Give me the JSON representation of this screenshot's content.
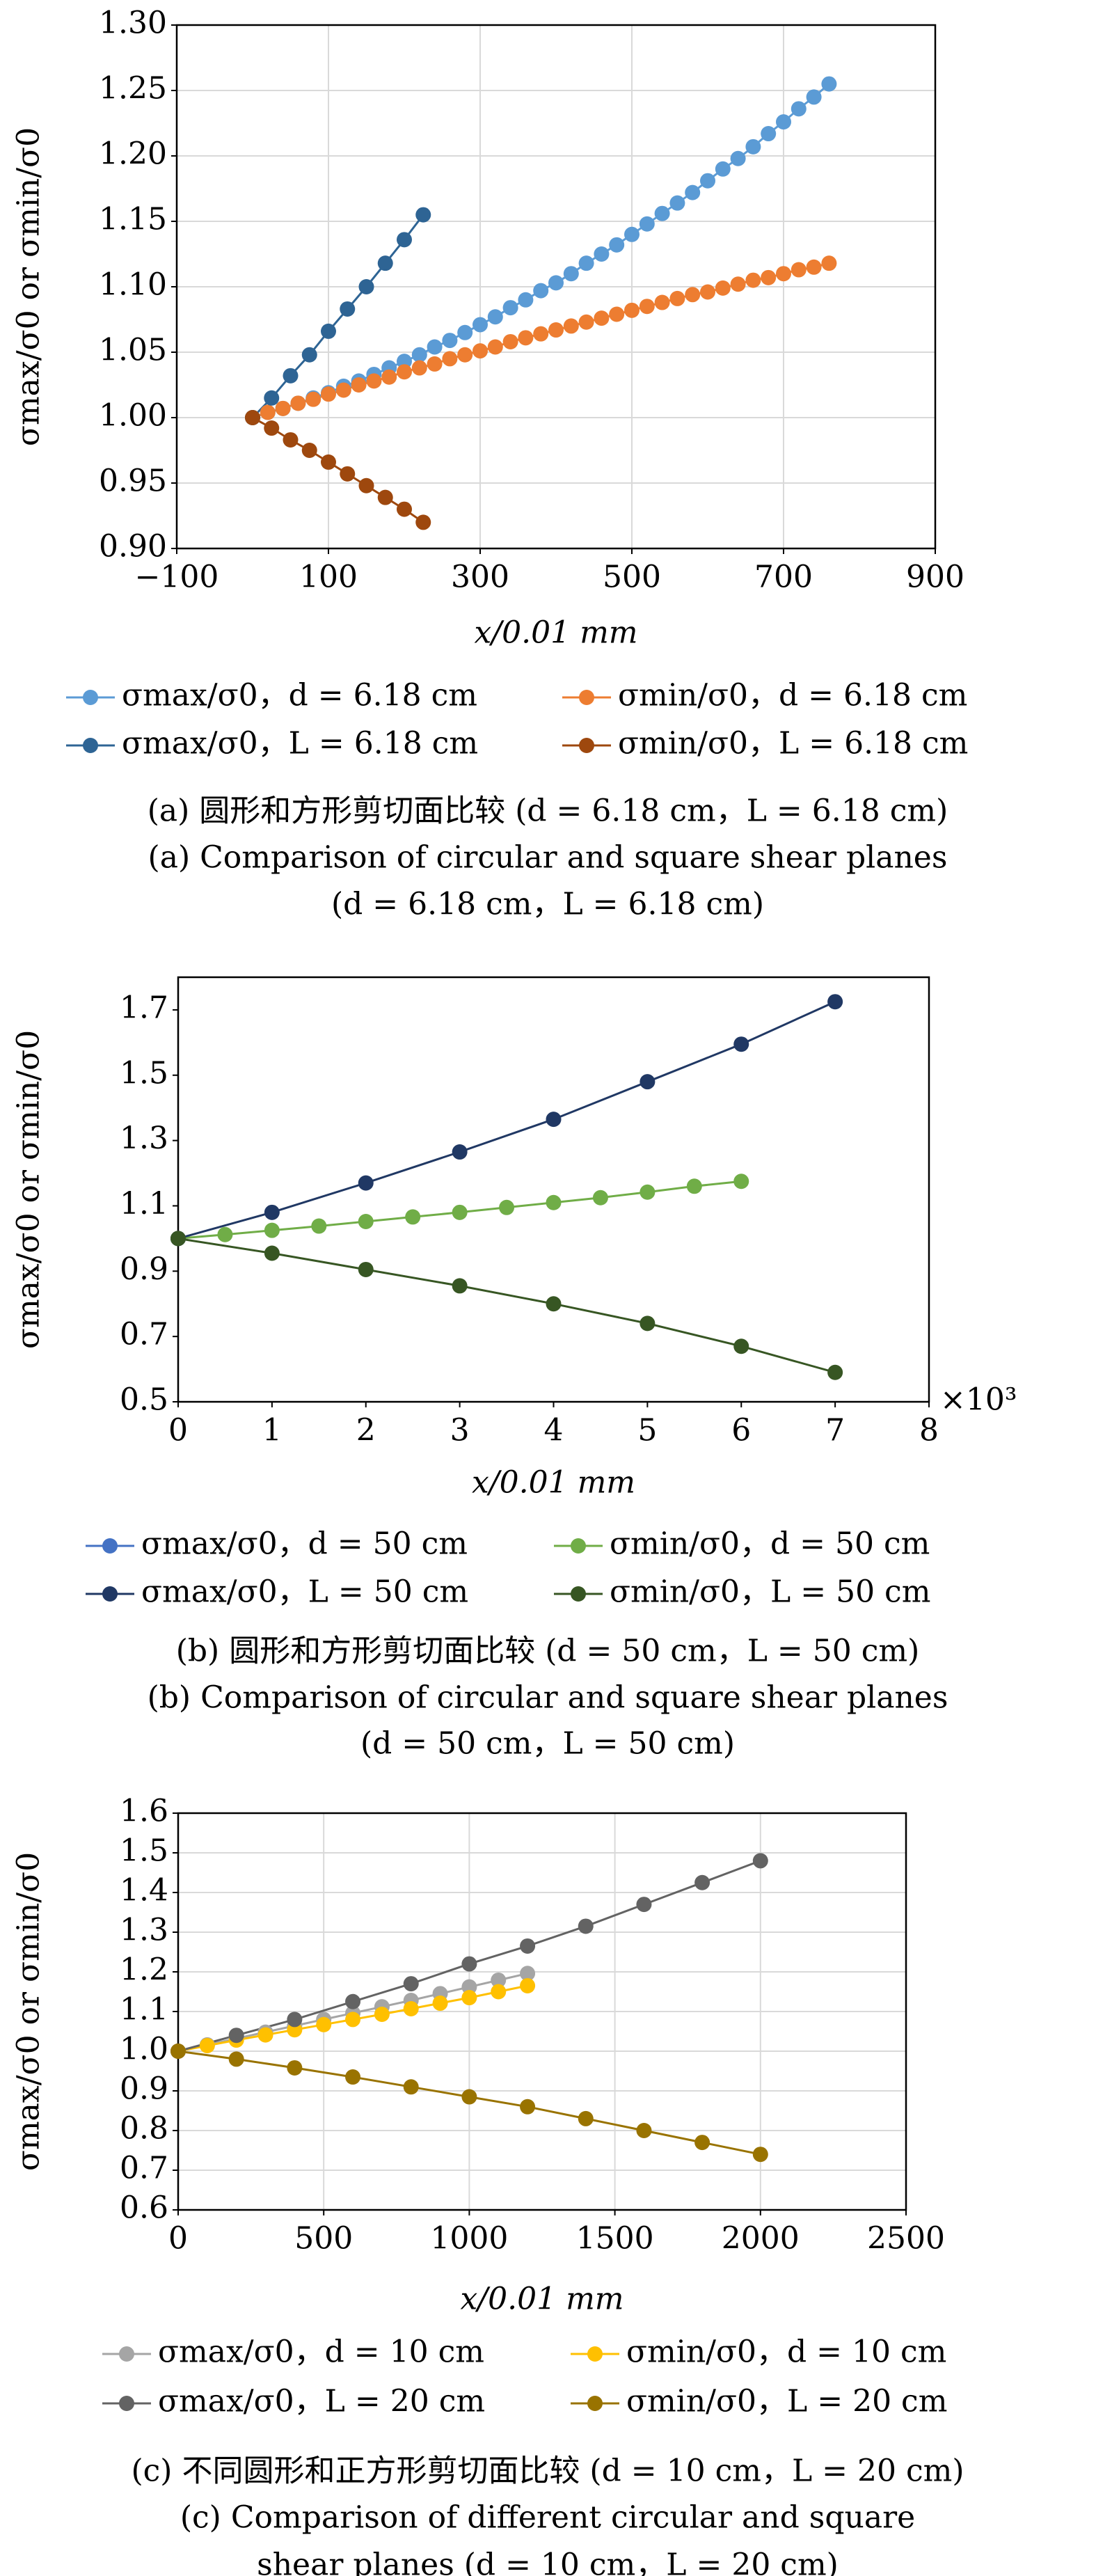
{
  "chart_data": [
    {
      "type": "line",
      "y_label": "σmax/σ0 or σmin/σ0",
      "x_label": "x/0.01 mm",
      "xlim": [
        -100,
        900
      ],
      "xticks": [
        {
          "value": -100,
          "label": "−100"
        },
        100,
        300,
        500,
        700,
        900
      ],
      "ylim": [
        0.9,
        1.3
      ],
      "yticks": [
        {
          "value": 0.9,
          "label": "0.90"
        },
        0.95,
        {
          "value": 1.0,
          "label": "1.00"
        },
        1.05,
        {
          "value": 1.1,
          "label": "1.10"
        },
        1.15,
        {
          "value": 1.2,
          "label": "1.20"
        },
        1.25,
        {
          "value": 1.3,
          "label": "1.30"
        }
      ],
      "grid": true,
      "series": [
        {
          "name": "σmax/σ0，d = 6.18 cm",
          "color": "#5b9bd5",
          "x": [
            0,
            20,
            40,
            60,
            80,
            100,
            120,
            140,
            160,
            180,
            200,
            220,
            240,
            260,
            280,
            300,
            320,
            340,
            360,
            380,
            400,
            420,
            440,
            460,
            480,
            500,
            520,
            540,
            560,
            580,
            600,
            620,
            640,
            660,
            680,
            700,
            720,
            740,
            760
          ],
          "values": [
            1.0,
            1.004,
            1.007,
            1.011,
            1.015,
            1.019,
            1.024,
            1.028,
            1.033,
            1.038,
            1.043,
            1.048,
            1.054,
            1.059,
            1.065,
            1.071,
            1.077,
            1.084,
            1.09,
            1.097,
            1.103,
            1.11,
            1.118,
            1.125,
            1.132,
            1.14,
            1.148,
            1.156,
            1.164,
            1.172,
            1.181,
            1.19,
            1.198,
            1.207,
            1.217,
            1.226,
            1.236,
            1.245,
            1.255
          ]
        },
        {
          "name": "σmin/σ0，d = 6.18 cm",
          "color": "#ed7d31",
          "x": [
            0,
            20,
            40,
            60,
            80,
            100,
            120,
            140,
            160,
            180,
            200,
            220,
            240,
            260,
            280,
            300,
            320,
            340,
            360,
            380,
            400,
            420,
            440,
            460,
            480,
            500,
            520,
            540,
            560,
            580,
            600,
            620,
            640,
            660,
            680,
            700,
            720,
            740,
            760
          ],
          "values": [
            1.0,
            1.004,
            1.007,
            1.011,
            1.014,
            1.018,
            1.021,
            1.025,
            1.028,
            1.031,
            1.035,
            1.038,
            1.041,
            1.045,
            1.048,
            1.051,
            1.054,
            1.058,
            1.061,
            1.064,
            1.067,
            1.07,
            1.073,
            1.076,
            1.079,
            1.082,
            1.085,
            1.088,
            1.091,
            1.094,
            1.096,
            1.099,
            1.102,
            1.105,
            1.107,
            1.11,
            1.113,
            1.115,
            1.118
          ]
        },
        {
          "name": "σmax/σ0，L = 6.18 cm",
          "color": "#2e6494",
          "x": [
            0,
            25,
            50,
            75,
            100,
            125,
            150,
            175,
            200,
            225
          ],
          "values": [
            1.0,
            1.015,
            1.032,
            1.048,
            1.066,
            1.083,
            1.1,
            1.118,
            1.136,
            1.155
          ]
        },
        {
          "name": "σmin/σ0，L = 6.18 cm",
          "color": "#9e480e",
          "x": [
            0,
            25,
            50,
            75,
            100,
            125,
            150,
            175,
            200,
            225
          ],
          "values": [
            1.0,
            0.992,
            0.983,
            0.975,
            0.966,
            0.957,
            0.948,
            0.939,
            0.93,
            0.92
          ]
        }
      ],
      "caption": [
        "(a) 圆形和方形剪切面比较 (d = 6.18 cm，L = 6.18 cm)",
        "(a) Comparison of circular and square shear planes",
        "(d = 6.18 cm，L = 6.18 cm)"
      ]
    },
    {
      "type": "line",
      "y_label": "σmax/σ0 or σmin/σ0",
      "x_label": "x/0.01 mm",
      "x_multiplier": "×10³",
      "xlim": [
        0,
        8
      ],
      "xticks": [
        0,
        1,
        2,
        3,
        4,
        5,
        6,
        7,
        8
      ],
      "ylim": [
        0.5,
        1.8
      ],
      "yticks": [
        0.5,
        0.7,
        0.9,
        1.1,
        1.3,
        1.5,
        1.7
      ],
      "grid": false,
      "series": [
        {
          "name": "σmax/σ0，d = 50 cm",
          "color": "#4472c4",
          "x": [
            0
          ],
          "values": [
            1.0
          ]
        },
        {
          "name": "σmin/σ0，d = 50 cm",
          "color": "#70ad47",
          "x": [
            0,
            0.5,
            1,
            1.5,
            2,
            2.5,
            3,
            3.5,
            4,
            4.5,
            5,
            5.5,
            6
          ],
          "values": [
            1.0,
            1.012,
            1.025,
            1.038,
            1.052,
            1.066,
            1.08,
            1.095,
            1.11,
            1.125,
            1.142,
            1.16,
            1.175
          ]
        },
        {
          "name": "σmax/σ0，L = 50 cm",
          "color": "#203864",
          "x": [
            0,
            1,
            2,
            3,
            4,
            5,
            6,
            7
          ],
          "values": [
            1.0,
            1.08,
            1.17,
            1.265,
            1.365,
            1.48,
            1.595,
            1.725
          ]
        },
        {
          "name": "σmin/σ0，L = 50 cm",
          "color": "#375623",
          "x": [
            0,
            1,
            2,
            3,
            4,
            5,
            6,
            7
          ],
          "values": [
            1.0,
            0.955,
            0.905,
            0.855,
            0.8,
            0.74,
            0.67,
            0.59
          ]
        }
      ],
      "caption": [
        "(b) 圆形和方形剪切面比较 (d = 50 cm，L = 50 cm)",
        "(b) Comparison of circular and square shear planes",
        "(d = 50 cm，L = 50 cm)"
      ]
    },
    {
      "type": "line",
      "y_label": "σmax/σ0 or σmin/σ0",
      "x_label": "x/0.01 mm",
      "xlim": [
        0,
        2500
      ],
      "xticks": [
        0,
        500,
        1000,
        1500,
        2000,
        2500
      ],
      "ylim": [
        0.6,
        1.6
      ],
      "yticks": [
        0.6,
        0.7,
        0.8,
        0.9,
        {
          "value": 1.0,
          "label": "1.0"
        },
        1.1,
        1.2,
        1.3,
        1.4,
        1.5,
        1.6
      ],
      "grid": true,
      "series": [
        {
          "name": "σmax/σ0，d = 10 cm",
          "color": "#a5a5a5",
          "x": [
            0,
            100,
            200,
            300,
            400,
            500,
            600,
            700,
            800,
            900,
            1000,
            1100,
            1200
          ],
          "values": [
            1.0,
            1.016,
            1.032,
            1.048,
            1.064,
            1.08,
            1.096,
            1.112,
            1.128,
            1.145,
            1.162,
            1.179,
            1.196
          ]
        },
        {
          "name": "σmin/σ0，d = 10 cm",
          "color": "#ffc000",
          "x": [
            0,
            100,
            200,
            300,
            400,
            500,
            600,
            700,
            800,
            900,
            1000,
            1100,
            1200
          ],
          "values": [
            1.0,
            1.014,
            1.028,
            1.041,
            1.054,
            1.067,
            1.08,
            1.093,
            1.107,
            1.121,
            1.135,
            1.15,
            1.165
          ]
        },
        {
          "name": "σmax/σ0，L = 20 cm",
          "color": "#636363",
          "x": [
            0,
            200,
            400,
            600,
            800,
            1000,
            1200,
            1400,
            1600,
            1800,
            2000
          ],
          "values": [
            1.0,
            1.04,
            1.08,
            1.125,
            1.17,
            1.22,
            1.265,
            1.315,
            1.37,
            1.425,
            1.48
          ]
        },
        {
          "name": "σmin/σ0，L = 20 cm",
          "color": "#997300",
          "x": [
            0,
            200,
            400,
            600,
            800,
            1000,
            1200,
            1400,
            1600,
            1800,
            2000
          ],
          "values": [
            1.0,
            0.98,
            0.958,
            0.935,
            0.91,
            0.885,
            0.86,
            0.83,
            0.8,
            0.77,
            0.74
          ]
        }
      ],
      "caption": [
        "(c) 不同圆形和正方形剪切面比较 (d = 10 cm，L = 20 cm)",
        "(c) Comparison of different circular and square",
        "shear planes (d = 10 cm，L = 20 cm)"
      ]
    }
  ]
}
